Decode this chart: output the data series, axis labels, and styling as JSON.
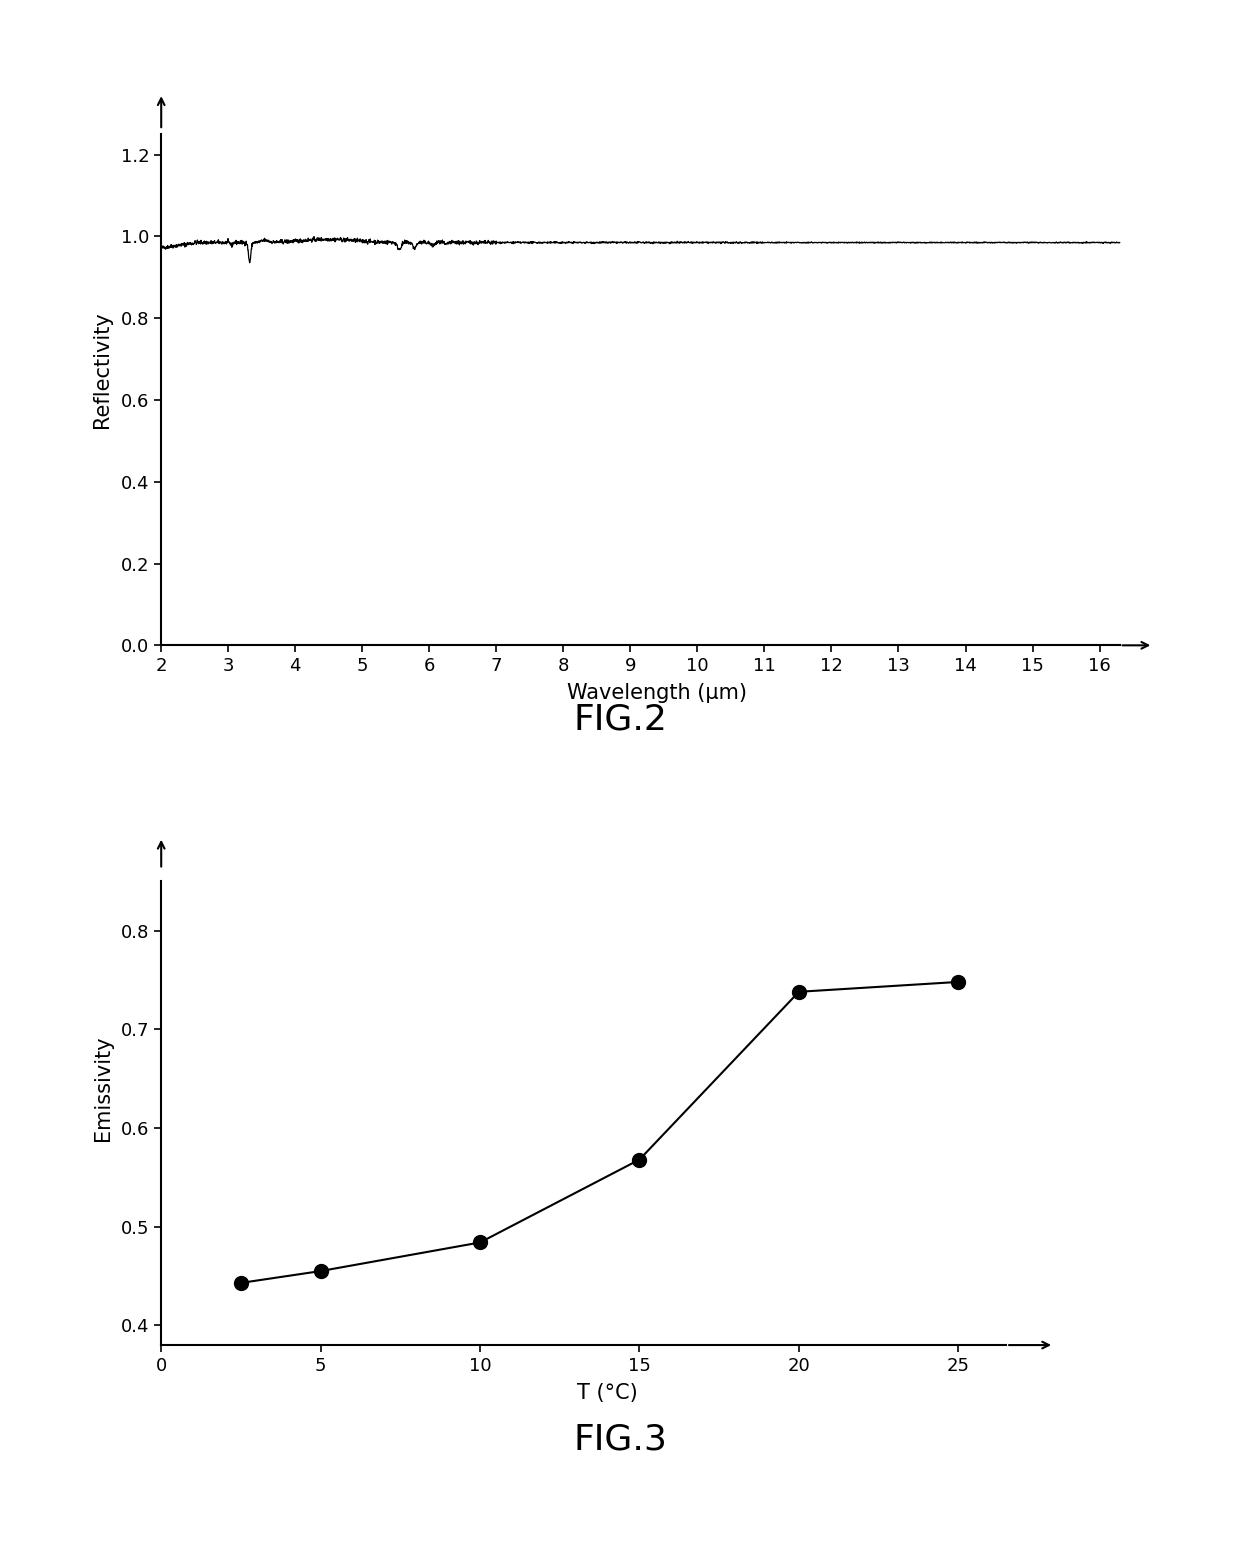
{
  "fig2": {
    "title": "FIG.2",
    "xlabel": "Wavelength (μm)",
    "ylabel": "Reflectivity",
    "xlim": [
      2,
      16.8
    ],
    "ylim": [
      0,
      1.35
    ],
    "xticks": [
      2,
      3,
      4,
      5,
      6,
      7,
      8,
      9,
      10,
      11,
      12,
      13,
      14,
      15,
      16
    ],
    "yticks": [
      0,
      0.2,
      0.4,
      0.6,
      0.8,
      1.0,
      1.2
    ],
    "line_color": "#000000",
    "background_color": "#ffffff"
  },
  "fig3": {
    "title": "FIG.3",
    "xlabel": "T (°C)",
    "ylabel": "Emissivity",
    "xlim": [
      0,
      28
    ],
    "ylim": [
      0.38,
      0.9
    ],
    "xticks": [
      0,
      5,
      10,
      15,
      20,
      25
    ],
    "yticks": [
      0.4,
      0.5,
      0.6,
      0.7,
      0.8
    ],
    "x_data": [
      2.5,
      5,
      10,
      15,
      20,
      25
    ],
    "y_data": [
      0.443,
      0.455,
      0.484,
      0.568,
      0.738,
      0.748
    ],
    "marker_color": "#000000",
    "line_color": "#000000",
    "background_color": "#ffffff"
  }
}
